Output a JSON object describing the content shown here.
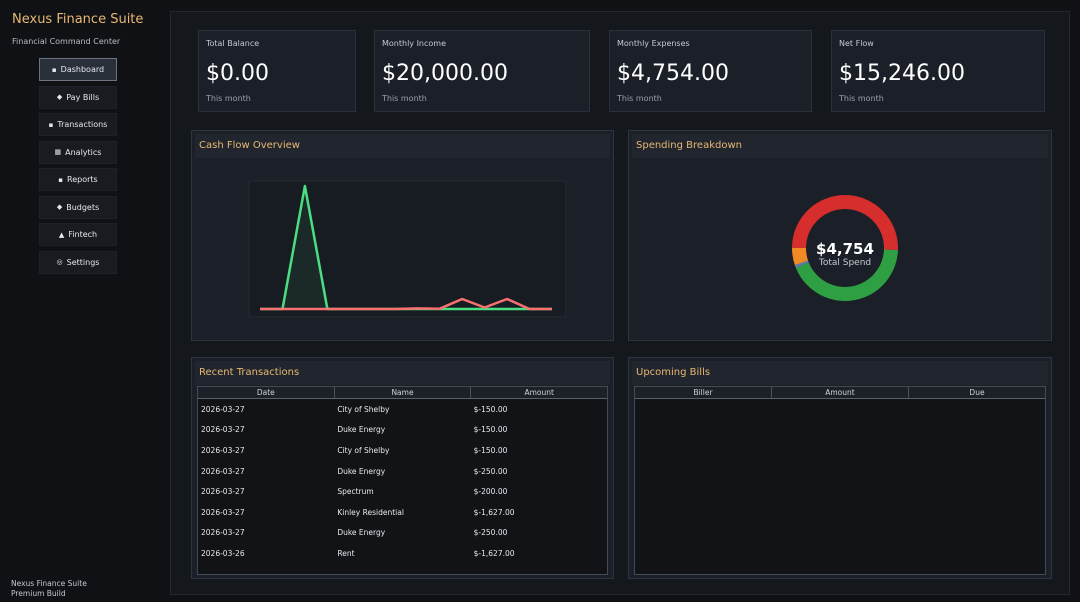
{
  "app": {
    "title": "Nexus Finance Suite",
    "subtitle": "Financial Command Center",
    "footer_line1": "Nexus Finance Suite",
    "footer_line2": "Premium Build"
  },
  "sidebar": {
    "items": [
      {
        "label": "Dashboard",
        "icon": "dashboard-icon",
        "glyph": "▪",
        "active": true
      },
      {
        "label": "Pay Bills",
        "icon": "pay-bills-icon",
        "glyph": "◆",
        "active": false
      },
      {
        "label": "Transactions",
        "icon": "transactions-icon",
        "glyph": "▪",
        "active": false
      },
      {
        "label": "Analytics",
        "icon": "analytics-icon",
        "glyph": "▦",
        "active": false
      },
      {
        "label": "Reports",
        "icon": "reports-icon",
        "glyph": "▪",
        "active": false
      },
      {
        "label": "Budgets",
        "icon": "budgets-icon",
        "glyph": "◆",
        "active": false
      },
      {
        "label": "Fintech",
        "icon": "fintech-icon",
        "glyph": "▲",
        "active": false
      },
      {
        "label": "Settings",
        "icon": "settings-icon",
        "glyph": "◎",
        "active": false
      }
    ]
  },
  "kpis": [
    {
      "label": "Total Balance",
      "value": "$0.00",
      "sub": "This month"
    },
    {
      "label": "Monthly Income",
      "value": "$20,000.00",
      "sub": "This month"
    },
    {
      "label": "Monthly Expenses",
      "value": "$4,754.00",
      "sub": "This month"
    },
    {
      "label": "Net Flow",
      "value": "$15,246.00",
      "sub": "This month"
    }
  ],
  "cashflow": {
    "title": "Cash Flow Overview"
  },
  "spending": {
    "title": "Spending Breakdown",
    "center_value": "$4,754",
    "center_label": "Total Spend"
  },
  "transactions": {
    "title": "Recent Transactions",
    "columns": [
      "Date",
      "Name",
      "Amount"
    ],
    "rows": [
      [
        "2026-03-27",
        "City of Shelby",
        "$-150.00"
      ],
      [
        "2026-03-27",
        "Duke Energy",
        "$-150.00"
      ],
      [
        "2026-03-27",
        "City of Shelby",
        "$-150.00"
      ],
      [
        "2026-03-27",
        "Duke Energy",
        "$-250.00"
      ],
      [
        "2026-03-27",
        "Spectrum",
        "$-200.00"
      ],
      [
        "2026-03-27",
        "Kinley Residential",
        "$-1,627.00"
      ],
      [
        "2026-03-27",
        "Duke Energy",
        "$-250.00"
      ],
      [
        "2026-03-26",
        "Rent",
        "$-1,627.00"
      ]
    ]
  },
  "bills": {
    "title": "Upcoming Bills",
    "columns": [
      "Biller",
      "Amount",
      "Due"
    ]
  },
  "colors": {
    "accent": "#e9b872",
    "income": "#4ade80",
    "expense": "#f87171",
    "donut_green": "#2ea043",
    "donut_red": "#d62d2d",
    "donut_orange": "#f08a24",
    "donut_blue": "#5b7fa8"
  },
  "chart_data": [
    {
      "type": "line",
      "title": "Cash Flow Overview",
      "x": [
        1,
        2,
        3,
        4,
        5,
        6,
        7,
        8,
        9,
        10,
        11,
        12,
        13,
        14
      ],
      "series": [
        {
          "values": [
            0,
            0,
            20000,
            0,
            0,
            0,
            0,
            0,
            0,
            0,
            0,
            0,
            0,
            0
          ]
        },
        {
          "values": [
            0,
            0,
            0,
            0,
            0,
            0,
            0,
            100,
            50,
            1627,
            250,
            1627,
            0,
            0
          ]
        }
      ],
      "ylim": [
        0,
        20000
      ]
    },
    {
      "type": "pie",
      "title": "Spending Breakdown",
      "slices": [
        {
          "value": 2054
        },
        {
          "value": 2400
        },
        {
          "value": 250
        },
        {
          "value": 50
        }
      ]
    }
  ]
}
